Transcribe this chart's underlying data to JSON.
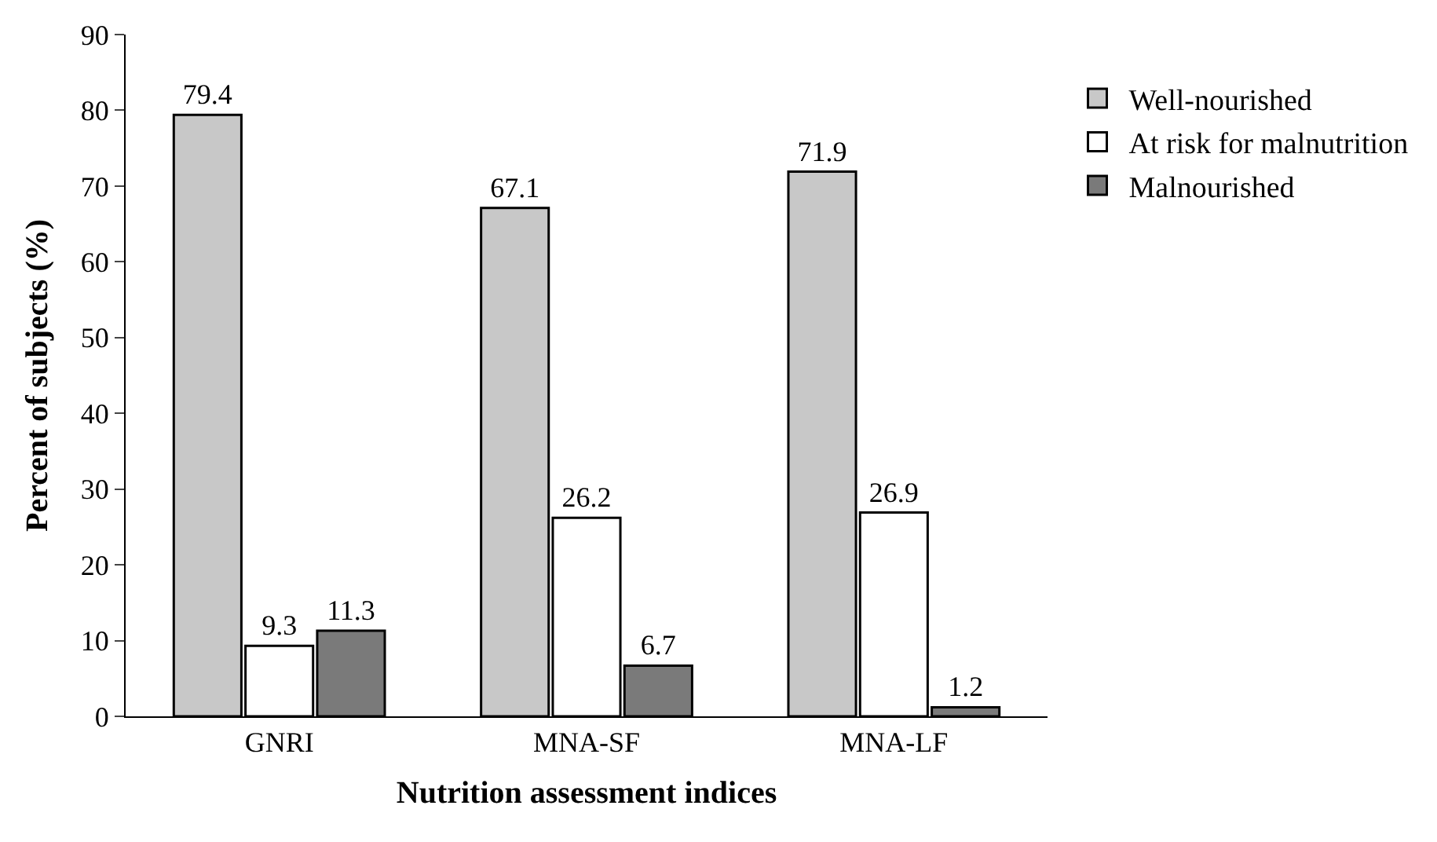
{
  "chart_data": {
    "type": "bar",
    "xlabel": "Nutrition assessment indices",
    "ylabel": "Percent of subjects (%)",
    "categories": [
      "GNRI",
      "MNA-SF",
      "MNA-LF"
    ],
    "series": [
      {
        "name": "Well-nourished",
        "color": "#c8c8c8",
        "values": [
          79.4,
          67.1,
          71.9
        ]
      },
      {
        "name": "At risk for malnutrition",
        "color": "#ffffff",
        "values": [
          9.3,
          26.2,
          26.9
        ]
      },
      {
        "name": "Malnourished",
        "color": "#7a7a7a",
        "values": [
          11.3,
          6.7,
          1.2
        ]
      }
    ],
    "ylim": [
      0,
      90
    ],
    "yticks": [
      0,
      10,
      20,
      30,
      40,
      50,
      60,
      70,
      80,
      90
    ],
    "data_labels": true,
    "legend": "top right"
  }
}
